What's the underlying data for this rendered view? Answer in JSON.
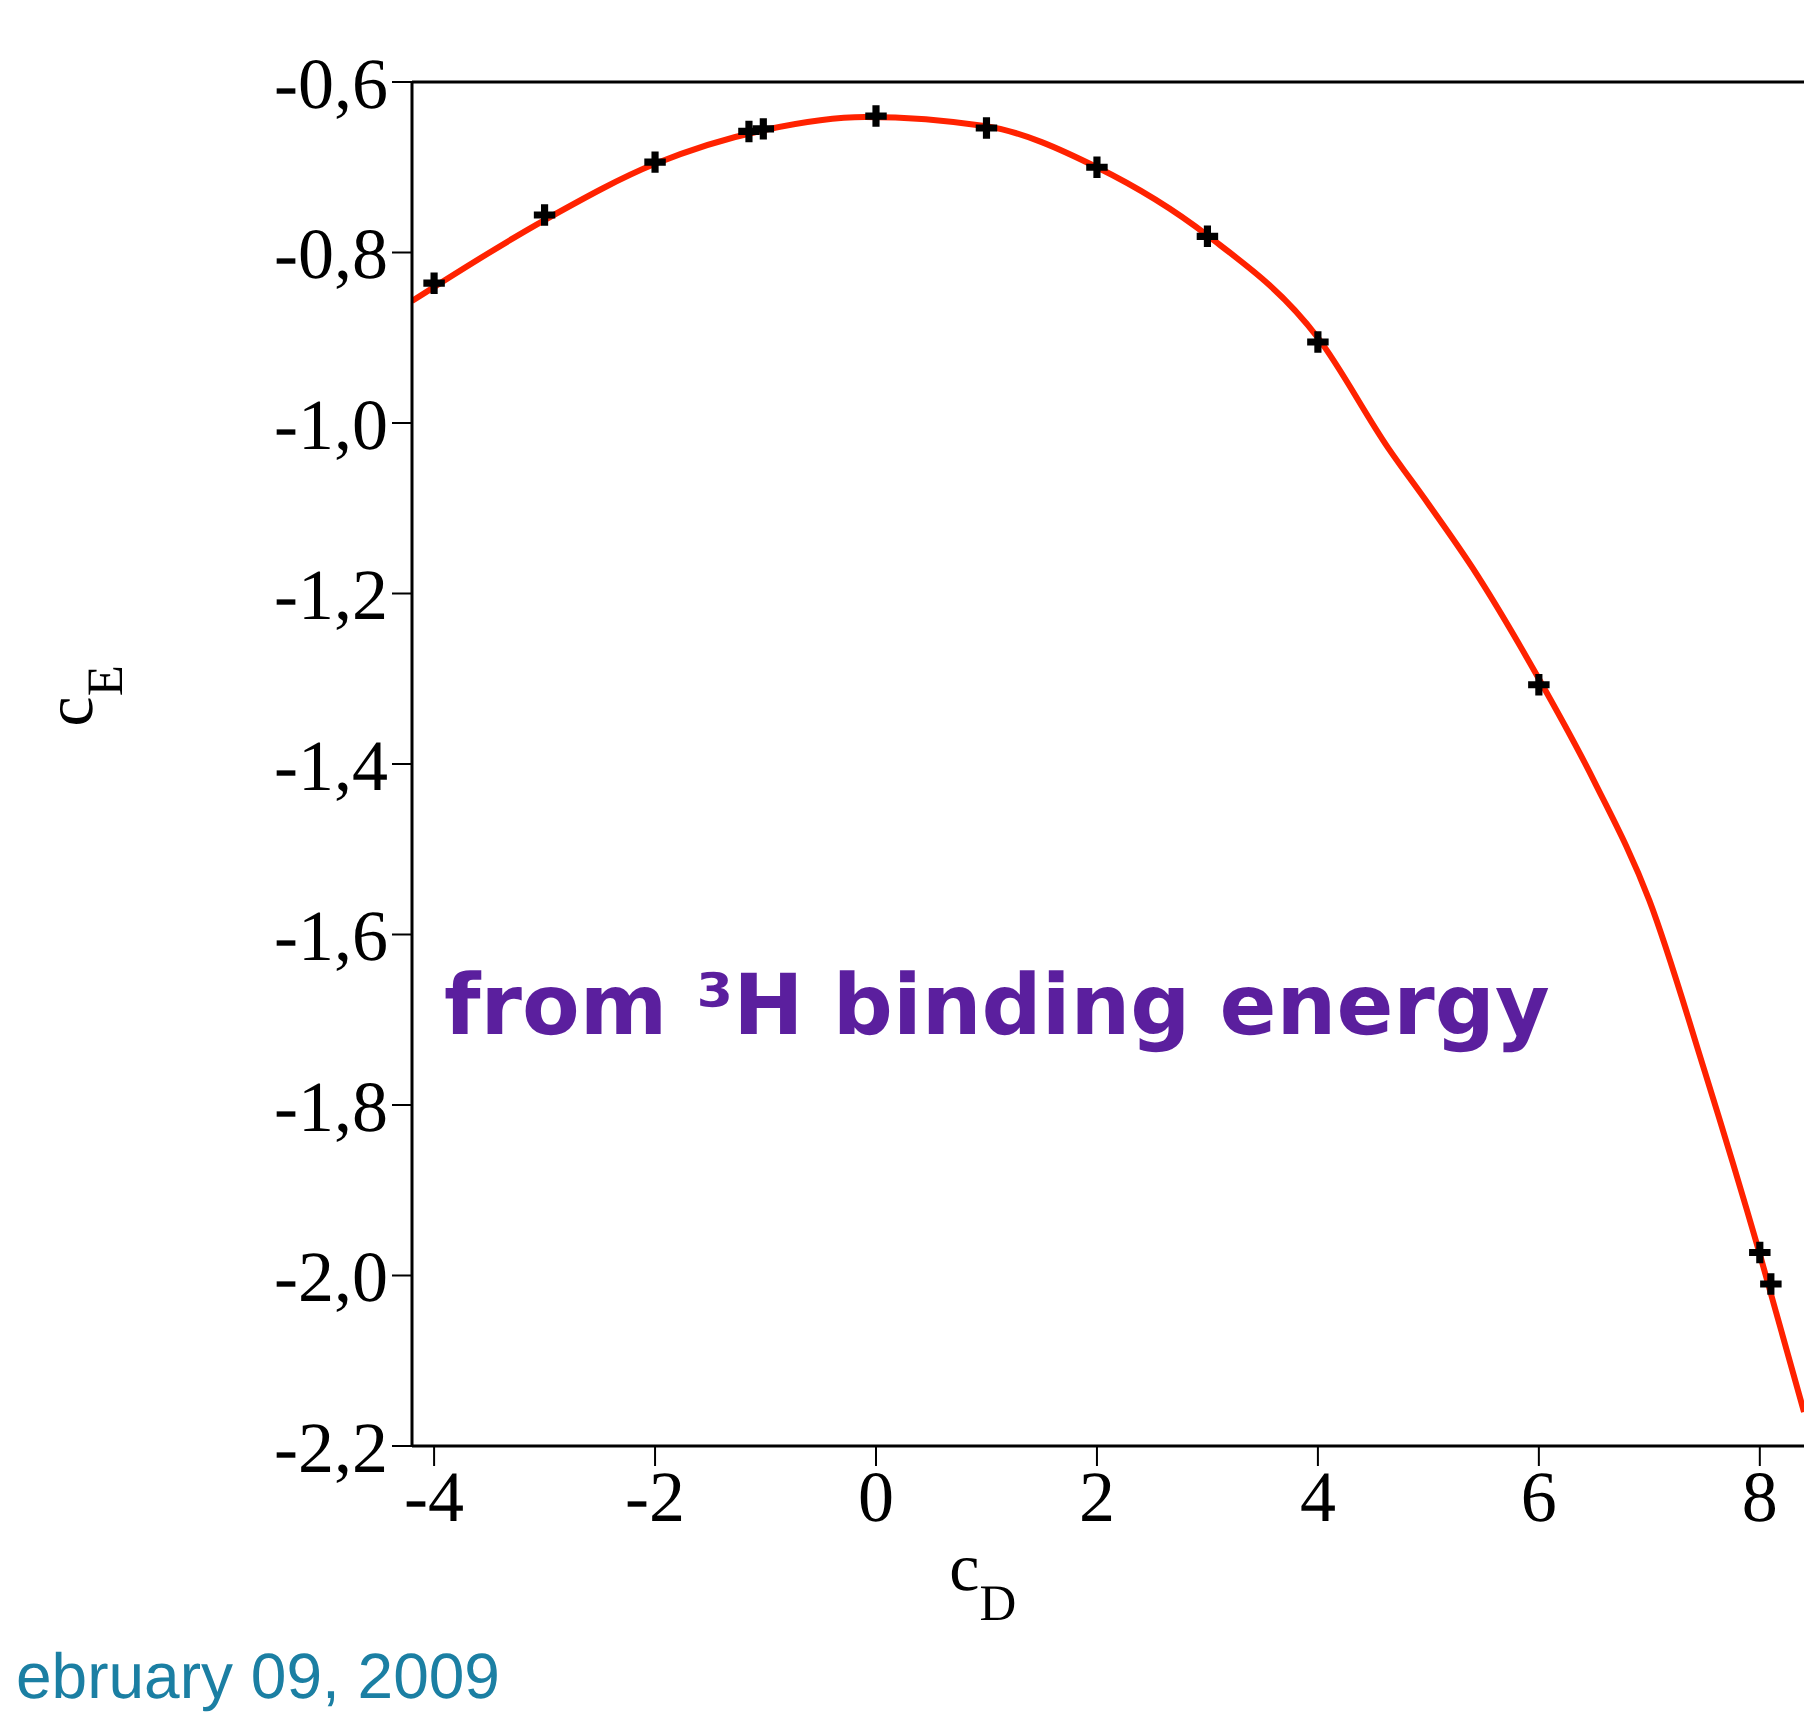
{
  "chart_data": {
    "type": "scatter",
    "xlabel": "c$_{D}$",
    "ylabel": "c$_{E}$",
    "xlim": [
      -4.2,
      8.4
    ],
    "xticks": [
      -4,
      -2,
      0,
      2,
      4,
      6,
      8
    ],
    "ylim": [
      -2.2,
      -0.6
    ],
    "yticks": [
      {
        "value": -2.2,
        "label": "-2,2"
      },
      {
        "value": -2.0,
        "label": "-2,0"
      },
      {
        "value": -1.8,
        "label": "-1,8"
      },
      {
        "value": -1.6,
        "label": "-1,6"
      },
      {
        "value": -1.4,
        "label": "-1,4"
      },
      {
        "value": -1.2,
        "label": "-1,2"
      },
      {
        "value": -1.0,
        "label": "-1,0"
      },
      {
        "value": -0.8,
        "label": "-0,8"
      },
      {
        "value": -0.6,
        "label": "-0,6"
      }
    ],
    "series": [
      {
        "color": "#000000",
        "marker": "cross",
        "x": [
          -4,
          -3,
          -2,
          -1.15,
          -1.02,
          0,
          1,
          2,
          3,
          4,
          6,
          8,
          8.1
        ],
        "values": [
          -0.836,
          -0.756,
          -0.694,
          -0.658,
          -0.655,
          -0.64,
          -0.654,
          -0.7,
          -0.781,
          -0.905,
          -1.307,
          -1.973,
          -2.01
        ]
      },
      {
        "type": "line",
        "color": "#ff2200",
        "x": [
          -4.2,
          -3,
          -2,
          -1,
          -0.1,
          1,
          2,
          3,
          4,
          4.64,
          5,
          5.4,
          6,
          6.5,
          7,
          7.5,
          8,
          8.4
        ],
        "values": [
          -0.857,
          -0.762,
          -0.696,
          -0.656,
          -0.641,
          -0.652,
          -0.7,
          -0.78,
          -0.9,
          -1.03,
          -1.095,
          -1.17,
          -1.3,
          -1.42,
          -1.56,
          -1.76,
          -1.975,
          -2.16
        ]
      }
    ],
    "annotations": [
      "from ³H binding energy",
      "ebruary 09, 2009"
    ]
  }
}
